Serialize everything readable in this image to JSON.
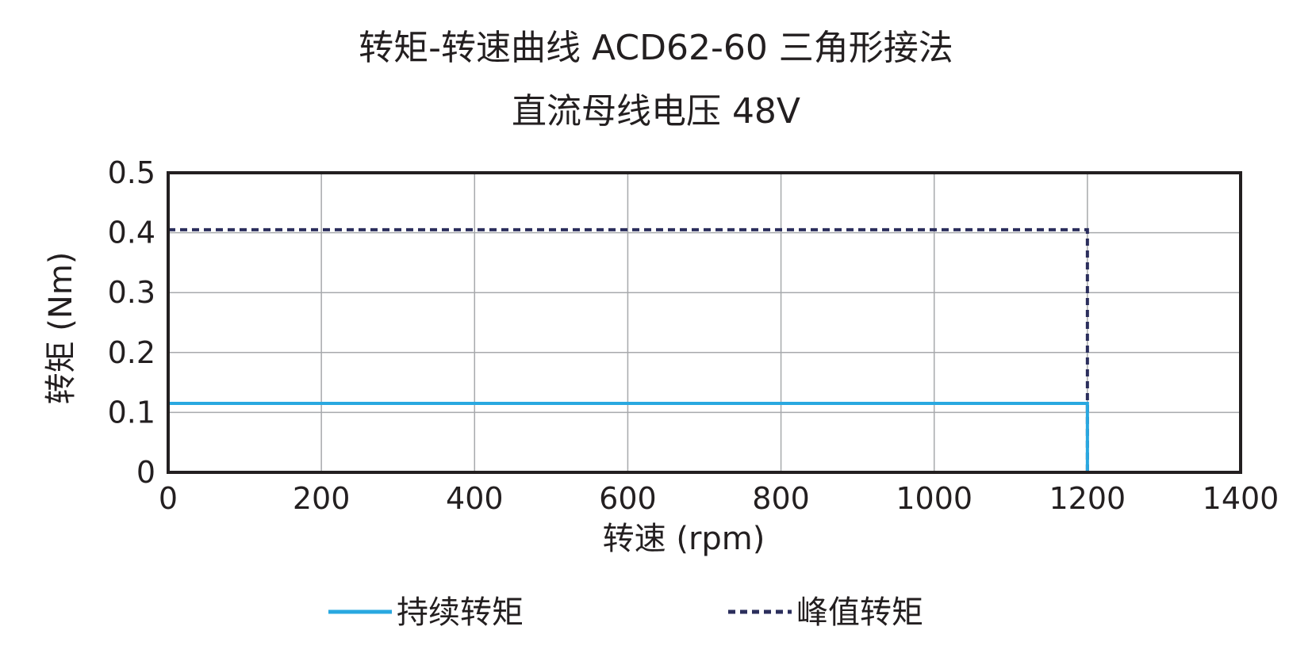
{
  "chart_data": {
    "type": "line",
    "title": "转矩-转速曲线 ACD62-60 三角形接法",
    "subtitle": "直流母线电压 48V",
    "xlabel": "转速 (rpm)",
    "ylabel": "转矩 (Nm)",
    "xlim": [
      0,
      1400
    ],
    "ylim": [
      0,
      0.5
    ],
    "xticks": [
      0,
      200,
      400,
      600,
      800,
      1000,
      1200,
      1400
    ],
    "yticks": [
      0,
      0.1,
      0.2,
      0.3,
      0.4,
      0.5
    ],
    "xtick_labels": [
      "0",
      "200",
      "400",
      "600",
      "800",
      "1000",
      "1200",
      "1400"
    ],
    "ytick_labels": [
      "0",
      "0.1",
      "0.2",
      "0.3",
      "0.4",
      "0.5"
    ],
    "grid": true,
    "legend_position": "bottom",
    "series": [
      {
        "name": "持续转矩",
        "style": "solid",
        "color": "#29a8e0",
        "x": [
          0,
          1200,
          1200
        ],
        "y": [
          0.115,
          0.115,
          0
        ]
      },
      {
        "name": "峰值转矩",
        "style": "dashed",
        "color": "#2b2e5c",
        "x": [
          0,
          1200,
          1200
        ],
        "y": [
          0.405,
          0.405,
          0
        ]
      }
    ]
  }
}
